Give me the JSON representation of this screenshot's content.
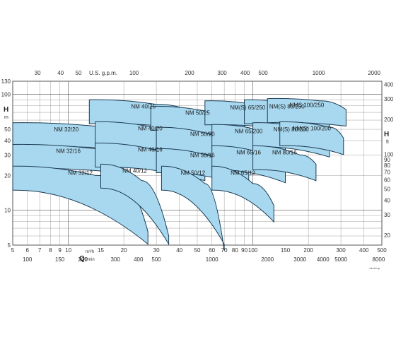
{
  "chart_data": {
    "type": "area",
    "title": "",
    "x_axis": {
      "label": "Q",
      "unit_primary": "m³/h",
      "unit_secondary": "l/min",
      "scale": "log",
      "range": [
        5,
        500
      ],
      "ticks": [
        "5",
        "6",
        "7",
        "8",
        "9",
        "10",
        "15",
        "20",
        "30",
        "40",
        "50",
        "60",
        "70",
        "80",
        "90",
        "100",
        "150",
        "200",
        "300",
        "400",
        "500"
      ],
      "lmin_ticks": [
        "100",
        "150",
        "200",
        "300",
        "400",
        "500",
        "1000",
        "2000",
        "3000",
        "4000",
        "5000",
        "8000"
      ]
    },
    "top_axis": {
      "label": "U.S. g.p.m.",
      "ticks": [
        "30",
        "40",
        "50",
        "100",
        "200",
        "300",
        "400",
        "500",
        "1000",
        "2000"
      ]
    },
    "y_axis_left": {
      "label": "H",
      "unit": "m",
      "scale": "log",
      "range": [
        5,
        130
      ],
      "ticks": [
        "5",
        "10",
        "20",
        "30",
        "40",
        "50",
        "100",
        "130"
      ]
    },
    "y_axis_right": {
      "label": "H",
      "unit": "ft",
      "ticks": [
        "20",
        "30",
        "40",
        "50",
        "60",
        "70",
        "80",
        "90",
        "100",
        "200",
        "300",
        "400"
      ]
    },
    "footnote": "ne em p",
    "grid": true,
    "series": [
      {
        "name": "NM 32/20",
        "q": [
          5,
          16,
          19
        ],
        "h_top": [
          57,
          52,
          47
        ]
      },
      {
        "name": "NM 32/16",
        "q": [
          5,
          16,
          20
        ],
        "h_top": [
          37,
          33,
          29
        ]
      },
      {
        "name": "NM 32/12",
        "q": [
          5,
          14,
          20,
          27
        ],
        "h_top": [
          24,
          20,
          16,
          6.5
        ]
      },
      {
        "name": "NM 40/25",
        "q": [
          13,
          30,
          50
        ],
        "h_top": [
          90,
          82,
          68
        ]
      },
      {
        "name": "NM 40/20",
        "q": [
          14,
          32,
          55
        ],
        "h_top": [
          58,
          50,
          38
        ]
      },
      {
        "name": "NM 40/16",
        "q": [
          14,
          32,
          55
        ],
        "h_top": [
          38,
          32,
          25
        ]
      },
      {
        "name": "NM 40/12",
        "q": [
          15,
          25,
          35
        ],
        "h_top": [
          25,
          18,
          6
        ]
      },
      {
        "name": "NM 50/25",
        "q": [
          28,
          60,
          90
        ],
        "h_top": [
          79,
          70,
          56
        ]
      },
      {
        "name": "NM 50/20",
        "q": [
          30,
          65,
          95
        ],
        "h_top": [
          52,
          43,
          35
        ]
      },
      {
        "name": "NM 50/16",
        "q": [
          30,
          65,
          95
        ],
        "h_top": [
          34,
          28,
          22
        ]
      },
      {
        "name": "NM 50/12",
        "q": [
          32,
          55,
          70
        ],
        "h_top": [
          24,
          17,
          4.5
        ]
      },
      {
        "name": "NM(S) 65/250",
        "q": [
          55,
          110,
          160
        ],
        "h_top": [
          88,
          80,
          68
        ]
      },
      {
        "name": "NM 65/200",
        "q": [
          60,
          120,
          150
        ],
        "h_top": [
          55,
          47,
          38
        ]
      },
      {
        "name": "NM 65/16",
        "q": [
          60,
          120,
          150
        ],
        "h_top": [
          36,
          30,
          24
        ]
      },
      {
        "name": "NM 65/12",
        "q": [
          60,
          100,
          130
        ],
        "h_top": [
          24,
          17,
          11
        ]
      },
      {
        "name": "NM(S) 80/250",
        "q": [
          90,
          170,
          260
        ],
        "h_top": [
          90,
          82,
          70
        ]
      },
      {
        "name": "NM(S) 80/200",
        "q": [
          100,
          200,
          260
        ],
        "h_top": [
          57,
          50,
          40
        ]
      },
      {
        "name": "NM 80/16",
        "q": [
          100,
          180,
          220
        ],
        "h_top": [
          36,
          30,
          25
        ]
      },
      {
        "name": "NMS 100/250",
        "q": [
          120,
          230,
          320
        ],
        "h_top": [
          92,
          88,
          74
        ]
      },
      {
        "name": "NM(S) 100/200",
        "q": [
          140,
          260,
          310
        ],
        "h_top": [
          58,
          52,
          42
        ]
      }
    ]
  }
}
